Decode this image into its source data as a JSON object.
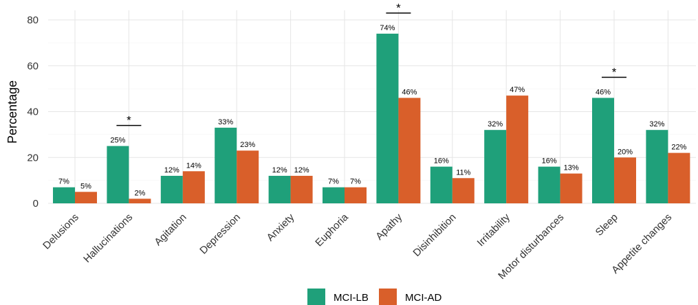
{
  "chart_data": {
    "type": "bar",
    "ylabel": "Percentage",
    "xlabel": "",
    "ylim": [
      0,
      80
    ],
    "yticks": [
      0,
      20,
      40,
      60,
      80
    ],
    "grid": true,
    "legend_position": "bottom",
    "categories": [
      "Delusions",
      "Hallucinations",
      "Agitation",
      "Depression",
      "Anxiety",
      "Euphoria",
      "Apathy",
      "Disinhibition",
      "Irritability",
      "Motor disturbances",
      "Sleep",
      "Appetite changes"
    ],
    "series": [
      {
        "name": "MCI-LB",
        "color": "#1fa07a",
        "values": [
          7,
          25,
          12,
          33,
          12,
          7,
          74,
          16,
          32,
          16,
          46,
          32
        ],
        "labels": [
          "7%",
          "25%",
          "12%",
          "33%",
          "12%",
          "7%",
          "74%",
          "16%",
          "32%",
          "16%",
          "46%",
          "32%"
        ]
      },
      {
        "name": "MCI-AD",
        "color": "#d95f2a",
        "values": [
          5,
          2,
          14,
          23,
          12,
          7,
          46,
          11,
          47,
          13,
          20,
          22
        ],
        "labels": [
          "5%",
          "2%",
          "14%",
          "23%",
          "12%",
          "7%",
          "46%",
          "11%",
          "47%",
          "13%",
          "20%",
          "22%"
        ]
      }
    ],
    "significance": [
      {
        "category": "Hallucinations",
        "marker": "*"
      },
      {
        "category": "Apathy",
        "marker": "*"
      },
      {
        "category": "Sleep",
        "marker": "*"
      }
    ]
  }
}
